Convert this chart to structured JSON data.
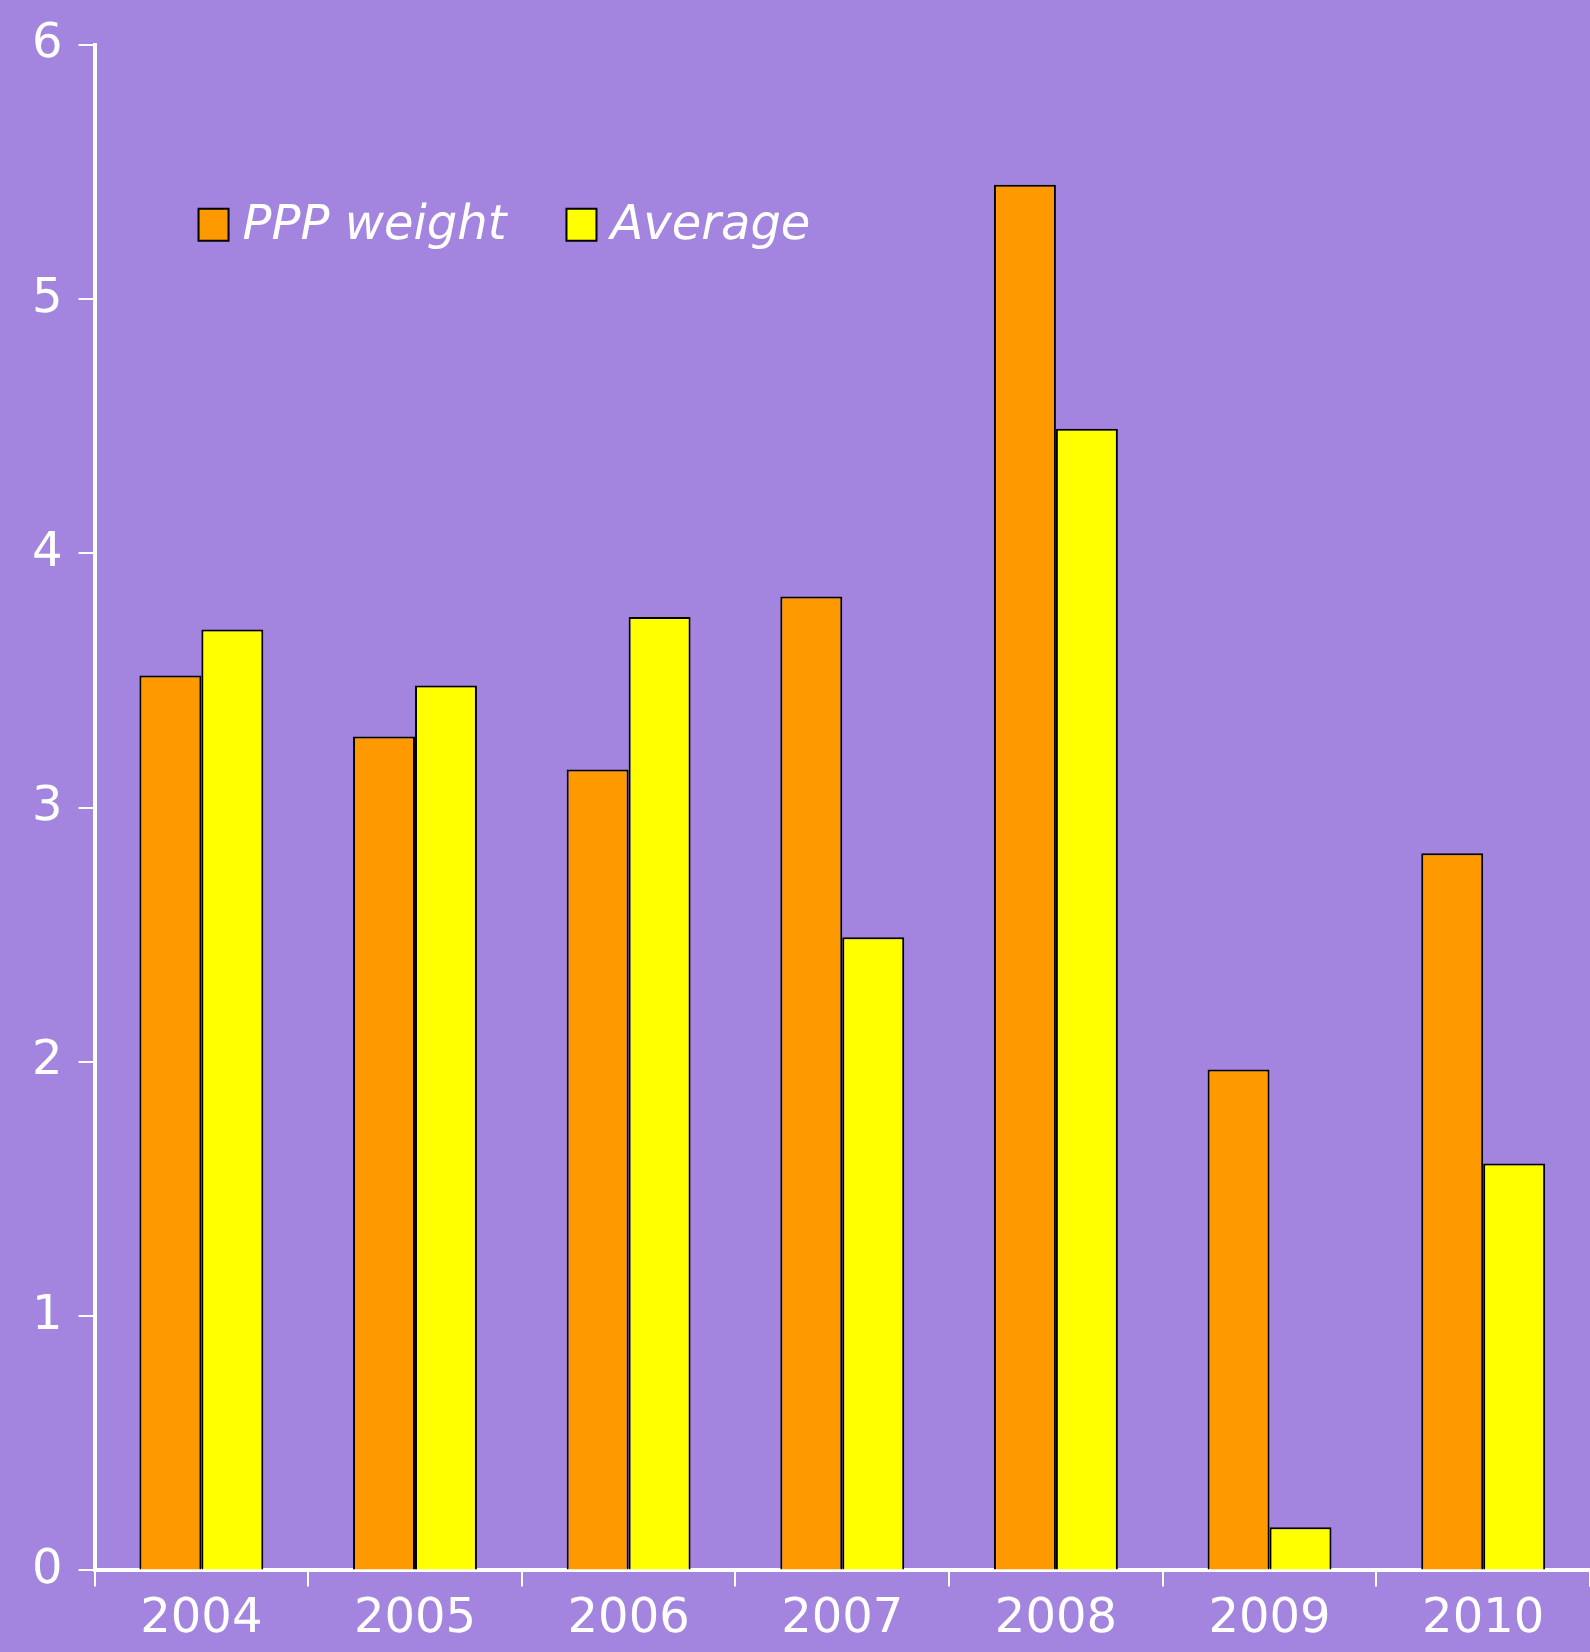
{
  "chart_data": {
    "type": "bar",
    "categories": [
      "2004",
      "2005",
      "2006",
      "2007",
      "2008",
      "2009",
      "2010"
    ],
    "series": [
      {
        "name": "PPP weight",
        "color": "#ff9900",
        "values": [
          3.52,
          3.28,
          3.15,
          3.83,
          5.45,
          1.97,
          2.82
        ]
      },
      {
        "name": "Average",
        "color": "#ffff00",
        "values": [
          3.7,
          3.48,
          3.75,
          2.49,
          4.49,
          0.17,
          1.6
        ]
      }
    ],
    "ylim": [
      0,
      6
    ],
    "yticks": [
      0,
      1,
      2,
      3,
      4,
      5,
      6
    ],
    "grid": false,
    "legend": "top left"
  }
}
